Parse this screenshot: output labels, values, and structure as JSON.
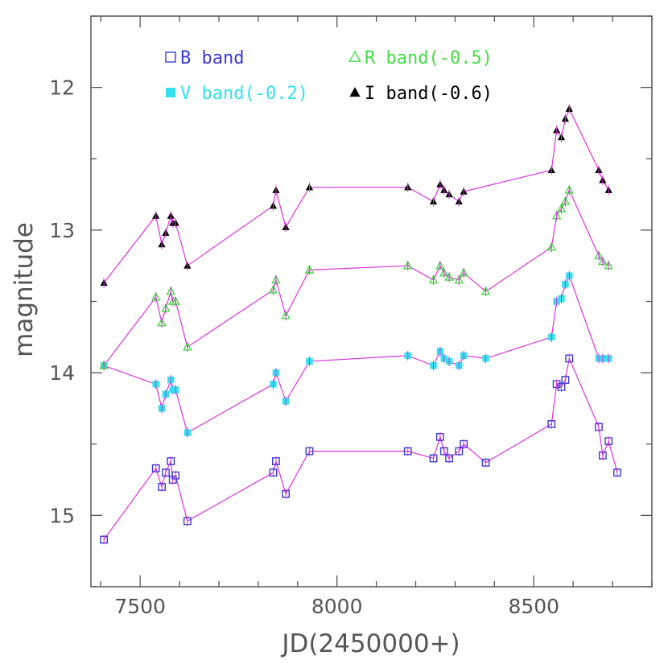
{
  "chart_data": {
    "type": "scatter",
    "xlabel": "JD(2450000+)",
    "ylabel": "magnitude",
    "xlim": [
      7375,
      8800
    ],
    "ylim": [
      15.5,
      11.5
    ],
    "y_inverted": true,
    "x_ticks": [
      7500,
      8000,
      8500
    ],
    "y_ticks": [
      12,
      13,
      14,
      15
    ],
    "grid": false,
    "legend_position": "top",
    "colors": {
      "B": "#3b3bd6",
      "V": "#33e0ee",
      "R": "#44dd44",
      "I": "#000000",
      "connector": "#dd33dd",
      "frame": "#555555"
    },
    "series": [
      {
        "name": "B band",
        "marker": "open-square",
        "x": [
          7408,
          7540,
          7555,
          7565,
          7578,
          7583,
          7590,
          7620,
          7838,
          7845,
          7870,
          7930,
          8180,
          8245,
          8262,
          8272,
          8285,
          8310,
          8322,
          8378,
          8545,
          8558,
          8570,
          8580,
          8590,
          8665,
          8675,
          8690,
          8712
        ],
        "y": [
          15.17,
          14.67,
          14.8,
          14.7,
          14.62,
          14.75,
          14.72,
          15.04,
          14.7,
          14.62,
          14.85,
          14.55,
          14.55,
          14.6,
          14.45,
          14.55,
          14.6,
          14.55,
          14.5,
          14.63,
          14.36,
          14.08,
          14.1,
          14.05,
          13.9,
          14.38,
          14.58,
          14.48,
          14.7
        ]
      },
      {
        "name": "V band(-0.2)",
        "marker": "filled-square",
        "x": [
          7408,
          7540,
          7555,
          7565,
          7578,
          7583,
          7590,
          7620,
          7838,
          7845,
          7870,
          7930,
          8180,
          8245,
          8262,
          8272,
          8285,
          8310,
          8322,
          8378,
          8545,
          8558,
          8570,
          8580,
          8590,
          8665,
          8675,
          8690
        ],
        "y": [
          13.95,
          14.08,
          14.25,
          14.15,
          14.05,
          14.12,
          14.12,
          14.42,
          14.08,
          14.0,
          14.2,
          13.92,
          13.88,
          13.95,
          13.85,
          13.9,
          13.92,
          13.95,
          13.88,
          13.9,
          13.75,
          13.5,
          13.48,
          13.38,
          13.32,
          13.9,
          13.9,
          13.9
        ]
      },
      {
        "name": "R band(-0.5)",
        "marker": "open-triangle",
        "x": [
          7408,
          7540,
          7555,
          7565,
          7578,
          7583,
          7590,
          7620,
          7838,
          7845,
          7870,
          7930,
          8180,
          8245,
          8262,
          8272,
          8285,
          8310,
          8322,
          8378,
          8545,
          8558,
          8570,
          8580,
          8590,
          8665,
          8675,
          8690
        ],
        "y": [
          13.95,
          13.47,
          13.65,
          13.55,
          13.43,
          13.5,
          13.5,
          13.82,
          13.42,
          13.35,
          13.6,
          13.28,
          13.25,
          13.35,
          13.25,
          13.3,
          13.33,
          13.35,
          13.3,
          13.43,
          13.12,
          12.9,
          12.85,
          12.8,
          12.72,
          13.18,
          13.22,
          13.25
        ]
      },
      {
        "name": "I band(-0.6)",
        "marker": "filled-triangle",
        "x": [
          7408,
          7540,
          7555,
          7565,
          7578,
          7583,
          7590,
          7620,
          7838,
          7845,
          7870,
          7930,
          8180,
          8245,
          8262,
          8272,
          8285,
          8310,
          8322,
          8545,
          8558,
          8570,
          8580,
          8590,
          8665,
          8675,
          8690
        ],
        "y": [
          13.37,
          12.9,
          13.1,
          13.02,
          12.9,
          12.95,
          12.95,
          13.25,
          12.83,
          12.72,
          12.98,
          12.7,
          12.7,
          12.8,
          12.68,
          12.72,
          12.75,
          12.8,
          12.73,
          12.58,
          12.3,
          12.35,
          12.22,
          12.15,
          12.58,
          12.65,
          12.72
        ]
      }
    ]
  }
}
